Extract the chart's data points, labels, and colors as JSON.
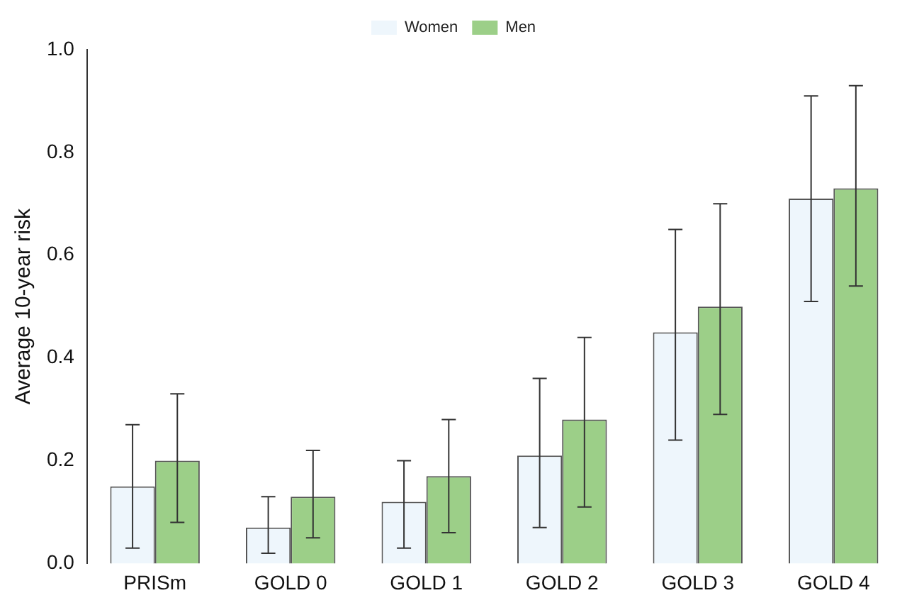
{
  "chart_data": {
    "type": "bar",
    "ylabel": "Average 10-year risk",
    "categories": [
      "PRISm",
      "GOLD 0",
      "GOLD 1",
      "GOLD 2",
      "GOLD 3",
      "GOLD 4"
    ],
    "series": [
      {
        "name": "Women",
        "color": "#eef6fc",
        "values": [
          0.15,
          0.07,
          0.12,
          0.21,
          0.45,
          0.71
        ],
        "errors": [
          [
            0.03,
            0.27
          ],
          [
            0.02,
            0.13
          ],
          [
            0.03,
            0.2
          ],
          [
            0.07,
            0.36
          ],
          [
            0.24,
            0.65
          ],
          [
            0.51,
            0.91
          ]
        ]
      },
      {
        "name": "Men",
        "color": "#9ccf88",
        "values": [
          0.2,
          0.13,
          0.17,
          0.28,
          0.5,
          0.73
        ],
        "errors": [
          [
            0.08,
            0.33
          ],
          [
            0.05,
            0.22
          ],
          [
            0.06,
            0.28
          ],
          [
            0.11,
            0.44
          ],
          [
            0.29,
            0.7
          ],
          [
            0.54,
            0.93
          ]
        ]
      }
    ],
    "ylim": [
      0,
      1
    ],
    "yticks": [
      {
        "value": 0,
        "label": "0.0"
      },
      {
        "value": 0.2,
        "label": "0.2"
      },
      {
        "value": 0.4,
        "label": "0.4"
      },
      {
        "value": 0.6,
        "label": "0.6"
      },
      {
        "value": 0.8,
        "label": "0.8"
      },
      {
        "value": 1,
        "label": "1.0"
      }
    ],
    "grid": false,
    "legend": "top"
  }
}
